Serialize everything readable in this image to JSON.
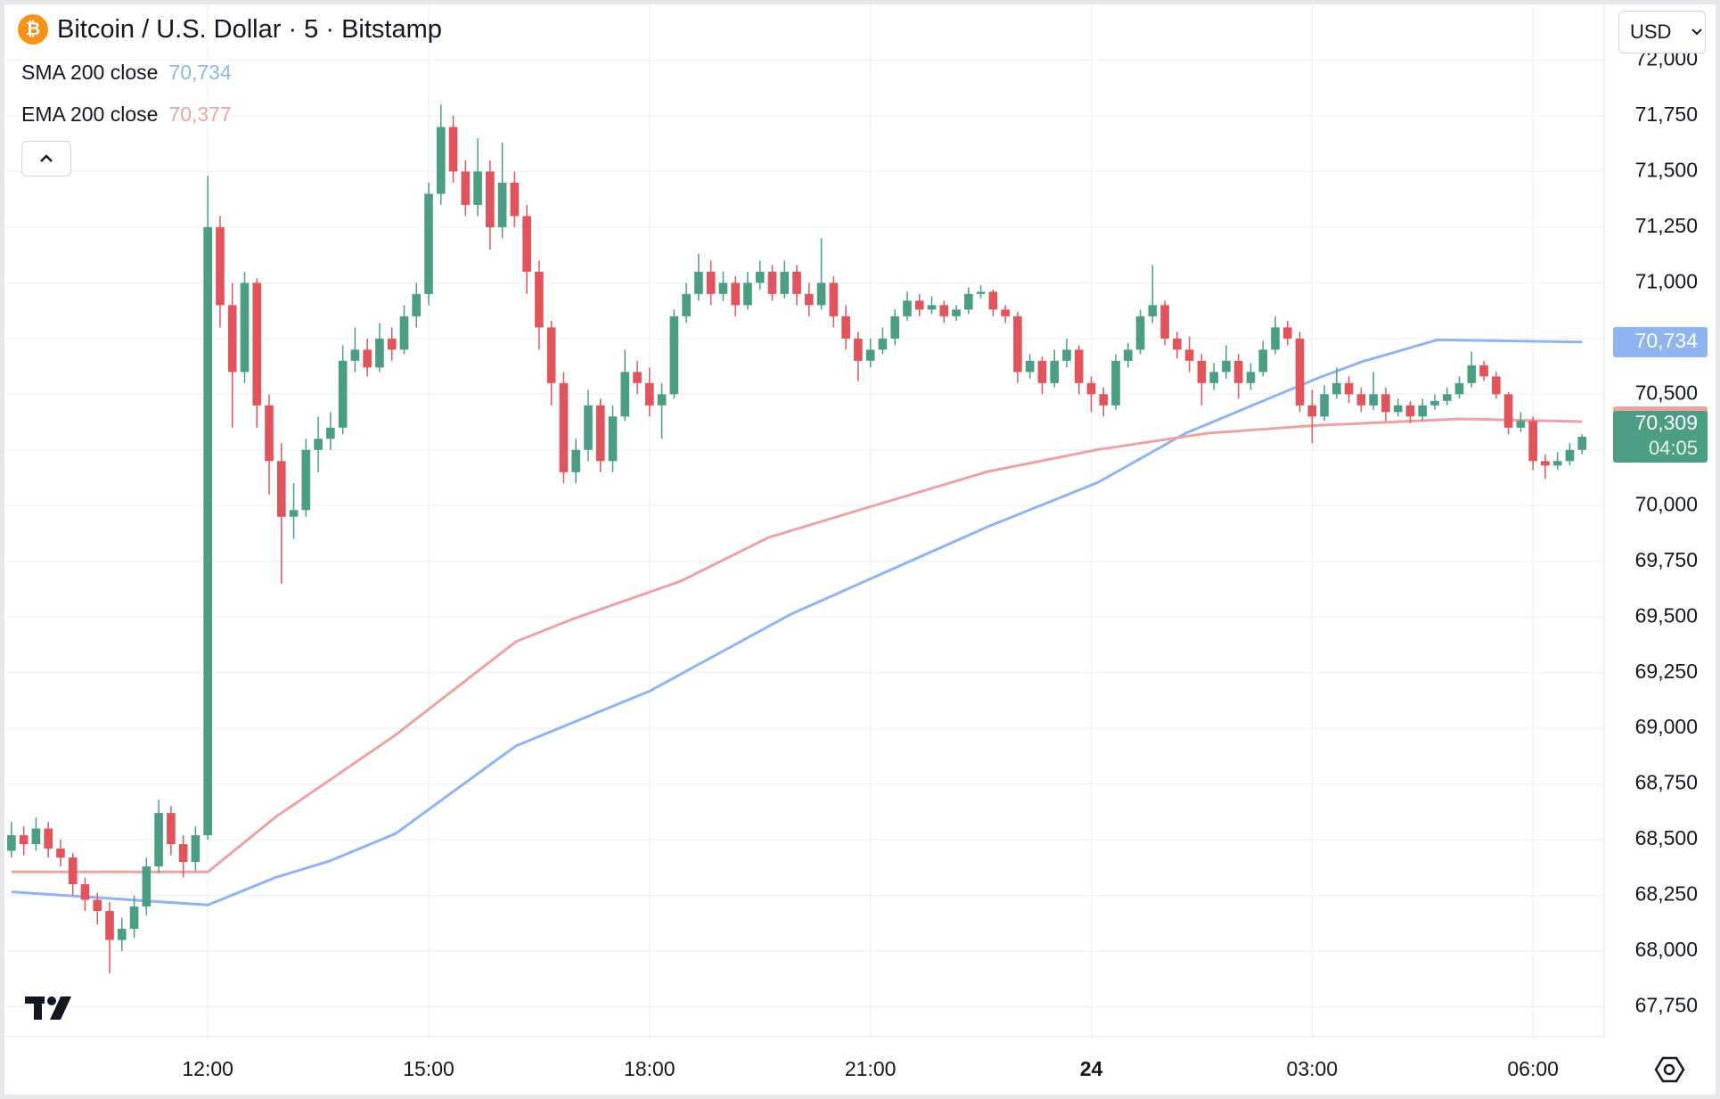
{
  "chart_data": {
    "type": "candlestick",
    "title": "Bitcoin / U.S. Dollar · 5 · Bitstamp",
    "currency": "USD",
    "up_color": "#4b9e83",
    "down_color": "#e2545c",
    "x": [
      560,
      570,
      580,
      590,
      600,
      610,
      620,
      630,
      640,
      650,
      660,
      670,
      680,
      690,
      700,
      710,
      720,
      730,
      740,
      750,
      760,
      770,
      780,
      790,
      800,
      810,
      820,
      830,
      840,
      850,
      860,
      870,
      880,
      890,
      900,
      910,
      920,
      930,
      940,
      950,
      960,
      970,
      980,
      990,
      1000,
      1010,
      1020,
      1030,
      1040,
      1050,
      1060,
      1070,
      1080,
      1090,
      1100,
      1110,
      1120,
      1130,
      1140,
      1150,
      1160,
      1170,
      1180,
      1190,
      1200,
      1210,
      1220,
      1230,
      1240,
      1250,
      1260,
      1270,
      1280,
      1290,
      1300,
      1310,
      1320,
      1330,
      1340,
      1350,
      1360,
      1370,
      1380,
      1390,
      1400,
      1410,
      1420,
      1430,
      1440,
      1450,
      1460,
      1470,
      1480,
      1490,
      1500,
      1510,
      1520,
      1530,
      1540,
      1550,
      1560,
      1570,
      1580,
      1590,
      1600,
      1610,
      1620,
      1630,
      1640,
      1650,
      1660,
      1670,
      1680,
      1690,
      1700,
      1710,
      1720,
      1730,
      1740,
      1750,
      1760,
      1770,
      1780,
      1790,
      1800,
      1810,
      1820,
      1830,
      1840
    ],
    "ohlc": [
      [
        68450,
        68580,
        68420,
        68520
      ],
      [
        68520,
        68560,
        68430,
        68480
      ],
      [
        68480,
        68600,
        68450,
        68550
      ],
      [
        68550,
        68580,
        68420,
        68460
      ],
      [
        68460,
        68500,
        68380,
        68420
      ],
      [
        68420,
        68440,
        68250,
        68300
      ],
      [
        68300,
        68330,
        68180,
        68230
      ],
      [
        68230,
        68260,
        68120,
        68180
      ],
      [
        68180,
        68220,
        67900,
        68050
      ],
      [
        68050,
        68150,
        68000,
        68100
      ],
      [
        68100,
        68250,
        68060,
        68200
      ],
      [
        68200,
        68420,
        68160,
        68380
      ],
      [
        68380,
        68680,
        68350,
        68620
      ],
      [
        68620,
        68650,
        68430,
        68480
      ],
      [
        68480,
        68520,
        68330,
        68400
      ],
      [
        68400,
        68560,
        68360,
        68520
      ],
      [
        68520,
        71480,
        68500,
        71250
      ],
      [
        71250,
        71300,
        70800,
        70900
      ],
      [
        70900,
        71000,
        70350,
        70600
      ],
      [
        70600,
        71050,
        70550,
        71000
      ],
      [
        71000,
        71020,
        70350,
        70450
      ],
      [
        70450,
        70500,
        70050,
        70200
      ],
      [
        70200,
        70280,
        69650,
        69950
      ],
      [
        69950,
        70100,
        69850,
        69980
      ],
      [
        69980,
        70300,
        69950,
        70250
      ],
      [
        70250,
        70400,
        70150,
        70300
      ],
      [
        70300,
        70420,
        70250,
        70350
      ],
      [
        70350,
        70720,
        70320,
        70650
      ],
      [
        70650,
        70800,
        70600,
        70700
      ],
      [
        70700,
        70750,
        70580,
        70620
      ],
      [
        70620,
        70820,
        70600,
        70750
      ],
      [
        70750,
        70800,
        70650,
        70700
      ],
      [
        70700,
        70900,
        70680,
        70850
      ],
      [
        70850,
        71000,
        70800,
        70950
      ],
      [
        70950,
        71450,
        70900,
        71400
      ],
      [
        71400,
        71800,
        71350,
        71700
      ],
      [
        71700,
        71750,
        71450,
        71500
      ],
      [
        71500,
        71550,
        71300,
        71350
      ],
      [
        71350,
        71650,
        71300,
        71500
      ],
      [
        71500,
        71550,
        71150,
        71250
      ],
      [
        71250,
        71630,
        71200,
        71450
      ],
      [
        71450,
        71500,
        71250,
        71300
      ],
      [
        71300,
        71350,
        70950,
        71050
      ],
      [
        71050,
        71100,
        70700,
        70800
      ],
      [
        70800,
        70830,
        70450,
        70550
      ],
      [
        70550,
        70600,
        70100,
        70150
      ],
      [
        70150,
        70300,
        70100,
        70250
      ],
      [
        70250,
        70520,
        70200,
        70450
      ],
      [
        70450,
        70480,
        70150,
        70200
      ],
      [
        70200,
        70450,
        70150,
        70400
      ],
      [
        70400,
        70700,
        70380,
        70600
      ],
      [
        70600,
        70650,
        70500,
        70550
      ],
      [
        70550,
        70620,
        70400,
        70450
      ],
      [
        70450,
        70550,
        70300,
        70500
      ],
      [
        70500,
        70880,
        70480,
        70850
      ],
      [
        70850,
        71000,
        70820,
        70950
      ],
      [
        70950,
        71130,
        70920,
        71050
      ],
      [
        71050,
        71100,
        70900,
        70950
      ],
      [
        70950,
        71050,
        70920,
        71000
      ],
      [
        71000,
        71030,
        70850,
        70900
      ],
      [
        70900,
        71050,
        70880,
        71000
      ],
      [
        71000,
        71100,
        70970,
        71050
      ],
      [
        71050,
        71080,
        70920,
        70950
      ],
      [
        70950,
        71100,
        70930,
        71050
      ],
      [
        71050,
        71080,
        70900,
        70950
      ],
      [
        70950,
        71000,
        70850,
        70900
      ],
      [
        70900,
        71200,
        70880,
        71000
      ],
      [
        71000,
        71030,
        70800,
        70850
      ],
      [
        70850,
        70900,
        70700,
        70750
      ],
      [
        70750,
        70780,
        70560,
        70650
      ],
      [
        70650,
        70750,
        70620,
        70700
      ],
      [
        70700,
        70800,
        70680,
        70750
      ],
      [
        70750,
        70880,
        70720,
        70850
      ],
      [
        70850,
        70960,
        70830,
        70920
      ],
      [
        70920,
        70950,
        70850,
        70880
      ],
      [
        70880,
        70940,
        70860,
        70900
      ],
      [
        70900,
        70920,
        70820,
        70850
      ],
      [
        70850,
        70900,
        70830,
        70880
      ],
      [
        70880,
        70980,
        70860,
        70950
      ],
      [
        70950,
        70990,
        70930,
        70960
      ],
      [
        70960,
        70970,
        70850,
        70880
      ],
      [
        70880,
        70900,
        70820,
        70850
      ],
      [
        70850,
        70870,
        70550,
        70600
      ],
      [
        70600,
        70680,
        70570,
        70650
      ],
      [
        70650,
        70670,
        70500,
        70550
      ],
      [
        70550,
        70700,
        70530,
        70650
      ],
      [
        70650,
        70750,
        70620,
        70700
      ],
      [
        70700,
        70720,
        70500,
        70550
      ],
      [
        70550,
        70580,
        70420,
        70500
      ],
      [
        70500,
        70530,
        70400,
        70450
      ],
      [
        70450,
        70680,
        70430,
        70650
      ],
      [
        70650,
        70730,
        70620,
        70700
      ],
      [
        70700,
        70880,
        70680,
        70850
      ],
      [
        70850,
        71080,
        70820,
        70900
      ],
      [
        70900,
        70920,
        70720,
        70750
      ],
      [
        70750,
        70780,
        70660,
        70700
      ],
      [
        70700,
        70760,
        70600,
        70650
      ],
      [
        70650,
        70680,
        70450,
        70550
      ],
      [
        70550,
        70640,
        70520,
        70600
      ],
      [
        70600,
        70720,
        70570,
        70650
      ],
      [
        70650,
        70680,
        70480,
        70550
      ],
      [
        70550,
        70640,
        70520,
        70600
      ],
      [
        70600,
        70740,
        70580,
        70700
      ],
      [
        70700,
        70850,
        70680,
        70800
      ],
      [
        70800,
        70830,
        70720,
        70750
      ],
      [
        70750,
        70780,
        70420,
        70450
      ],
      [
        70450,
        70520,
        70280,
        70400
      ],
      [
        70400,
        70540,
        70380,
        70500
      ],
      [
        70500,
        70620,
        70480,
        70550
      ],
      [
        70550,
        70580,
        70460,
        70500
      ],
      [
        70500,
        70530,
        70420,
        70450
      ],
      [
        70450,
        70600,
        70430,
        70500
      ],
      [
        70500,
        70530,
        70380,
        70420
      ],
      [
        70420,
        70480,
        70400,
        70450
      ],
      [
        70450,
        70470,
        70370,
        70400
      ],
      [
        70400,
        70480,
        70380,
        70450
      ],
      [
        70450,
        70500,
        70430,
        70470
      ],
      [
        70470,
        70530,
        70450,
        70500
      ],
      [
        70500,
        70580,
        70480,
        70550
      ],
      [
        70550,
        70690,
        70530,
        70630
      ],
      [
        70630,
        70650,
        70560,
        70580
      ],
      [
        70580,
        70600,
        70480,
        70500
      ],
      [
        70500,
        70510,
        70320,
        70350
      ],
      [
        70350,
        70420,
        70330,
        70380
      ],
      [
        70380,
        70400,
        70160,
        70200
      ],
      [
        70200,
        70230,
        70120,
        70180
      ],
      [
        70180,
        70240,
        70160,
        70200
      ],
      [
        70200,
        70280,
        70180,
        70250
      ],
      [
        70250,
        70320,
        70230,
        70309
      ]
    ],
    "last_price": {
      "value": 70309,
      "label": "70,309"
    },
    "countdown": "04:05",
    "lines": [
      {
        "name": "SMA 200 close",
        "color": "#8fb4f0",
        "x": [
          560,
          720,
          775,
          819,
          873,
          971,
          1080,
          1195,
          1356,
          1445,
          1517,
          1624,
          1660,
          1722,
          1840
        ],
        "values": [
          68266,
          68207,
          68330,
          68404,
          68527,
          68921,
          69167,
          69512,
          69906,
          70103,
          70325,
          70571,
          70645,
          70744,
          70734
        ],
        "last": {
          "value": 70734,
          "label": "70,734"
        }
      },
      {
        "name": "EMA 200 close",
        "color": "#eea3a3",
        "x": [
          560,
          720,
          775,
          873,
          971,
          1016,
          1105,
          1177,
          1266,
          1356,
          1445,
          1535,
          1624,
          1740,
          1840
        ],
        "values": [
          68355,
          68355,
          68601,
          68970,
          69389,
          69488,
          69660,
          69857,
          70005,
          70153,
          70251,
          70325,
          70360,
          70389,
          70377
        ],
        "last": {
          "value": 70377,
          "label": "70,377"
        }
      }
    ],
    "xlim": [
      555,
      1858
    ],
    "xticks": [
      {
        "value": 720,
        "label": "12:00"
      },
      {
        "value": 900,
        "label": "15:00"
      },
      {
        "value": 1080,
        "label": "18:00"
      },
      {
        "value": 1260,
        "label": "21:00"
      },
      {
        "value": 1440,
        "label": "24"
      },
      {
        "value": 1620,
        "label": "03:00"
      },
      {
        "value": 1800,
        "label": "06:00"
      }
    ],
    "ylim": [
      67616,
      72246
    ],
    "yticks": [
      {
        "value": 67750,
        "label": "67,750"
      },
      {
        "value": 68000,
        "label": "68,000"
      },
      {
        "value": 68250,
        "label": "68,250"
      },
      {
        "value": 68500,
        "label": "68,500"
      },
      {
        "value": 68750,
        "label": "68,750"
      },
      {
        "value": 69000,
        "label": "69,000"
      },
      {
        "value": 69250,
        "label": "69,250"
      },
      {
        "value": 69500,
        "label": "69,500"
      },
      {
        "value": 69750,
        "label": "69,750"
      },
      {
        "value": 70000,
        "label": "70,000"
      },
      {
        "value": 70250,
        "label": "70,250"
      },
      {
        "value": 70500,
        "label": "70,500"
      },
      {
        "value": 70750,
        "label": "70,750"
      },
      {
        "value": 71000,
        "label": "71,000"
      },
      {
        "value": 71250,
        "label": "71,250"
      },
      {
        "value": 71500,
        "label": "71,500"
      },
      {
        "value": 71750,
        "label": "71,750"
      },
      {
        "value": 72000,
        "label": "72,000"
      }
    ],
    "grid": true
  }
}
